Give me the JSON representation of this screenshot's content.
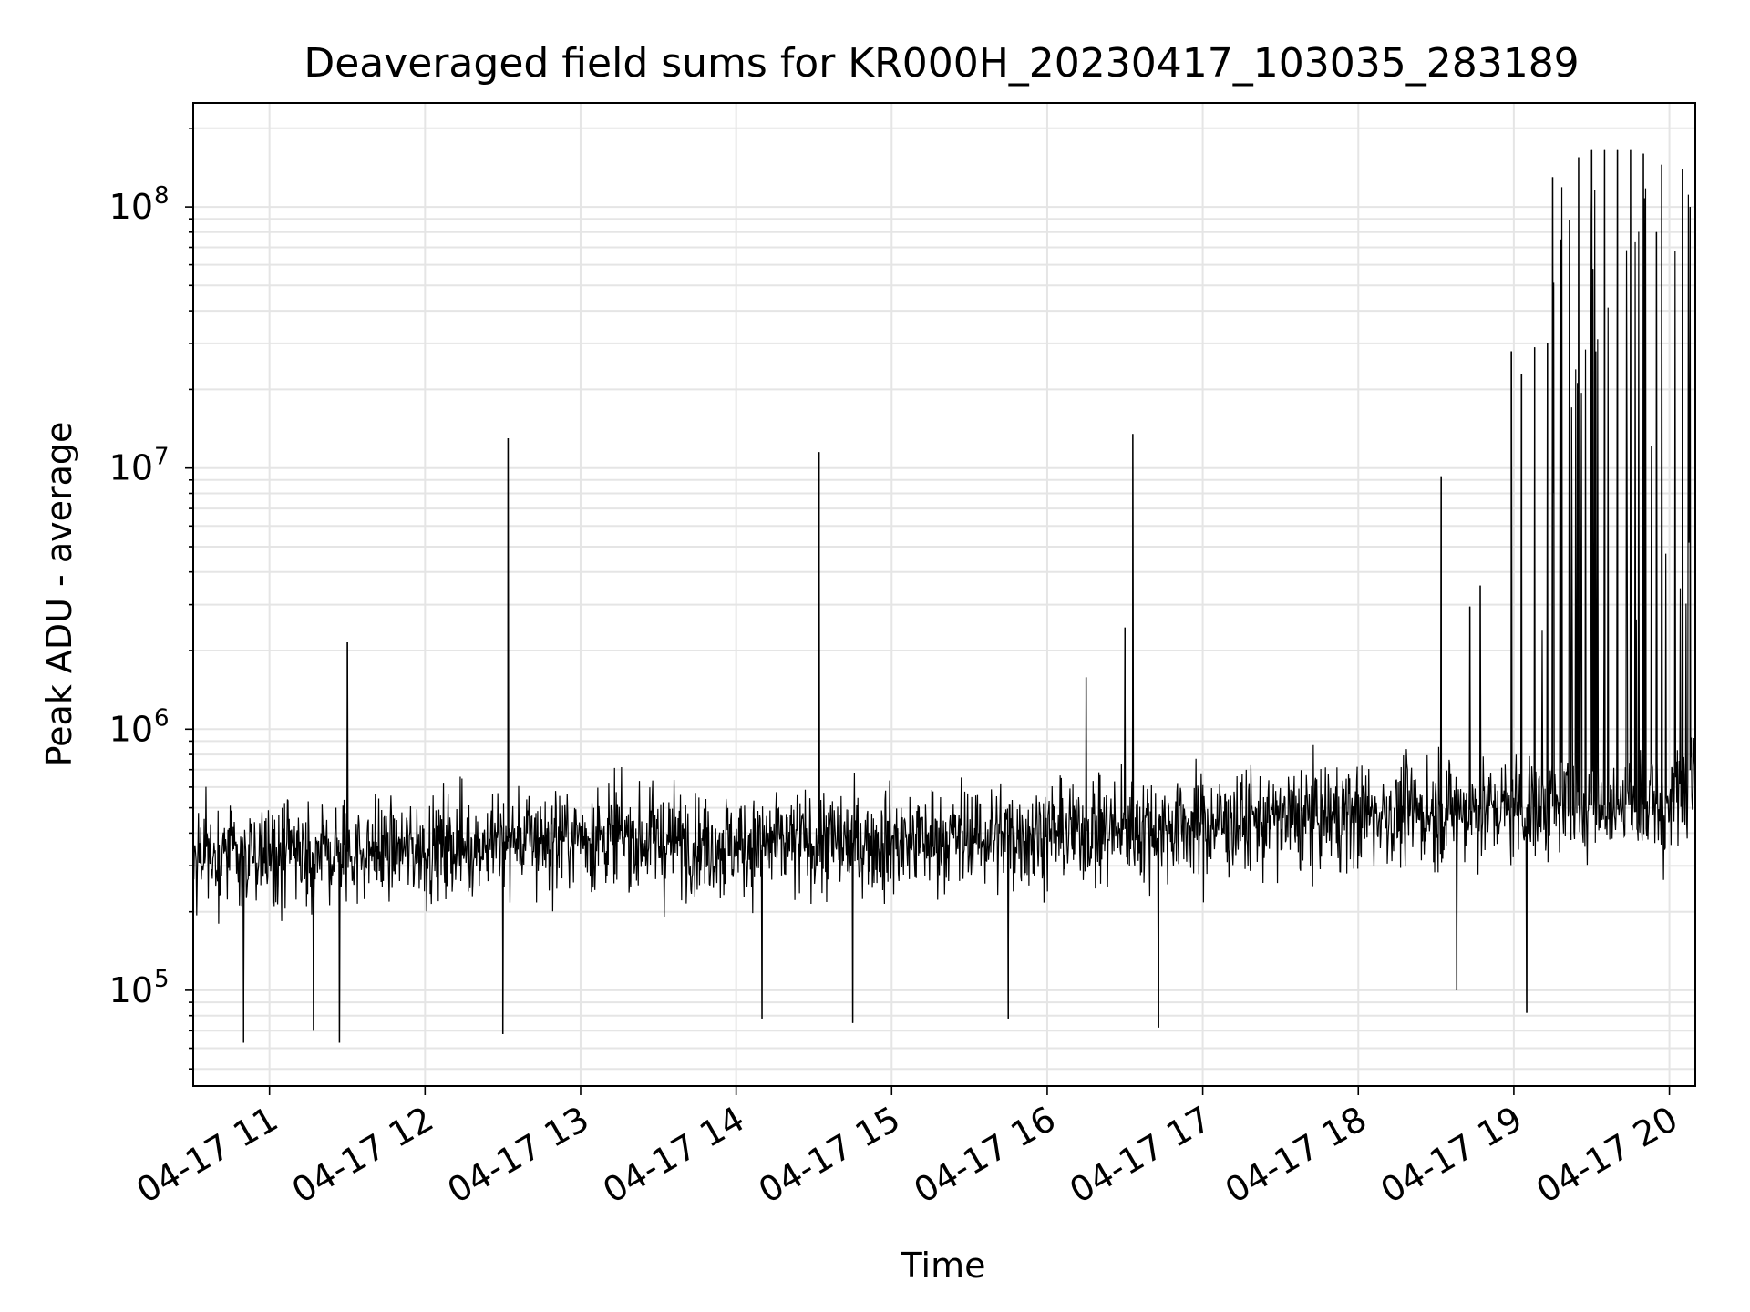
{
  "chart_data": {
    "type": "line",
    "title": "Deaveraged field sums for KR000H_20230417_103035_283189",
    "xlabel": "Time",
    "ylabel": "Peak ADU - average",
    "yscale": "log",
    "ylim": [
      43000,
      250000000
    ],
    "xlim": [
      "2023-04-17 10:30:35",
      "2023-04-17 20:10:00"
    ],
    "x_tick_labels": [
      "04-17 11",
      "04-17 12",
      "04-17 13",
      "04-17 14",
      "04-17 15",
      "04-17 16",
      "04-17 17",
      "04-17 18",
      "04-17 19",
      "04-17 20"
    ],
    "x_tick_values": [
      "2023-04-17 11:00",
      "2023-04-17 12:00",
      "2023-04-17 13:00",
      "2023-04-17 14:00",
      "2023-04-17 15:00",
      "2023-04-17 16:00",
      "2023-04-17 17:00",
      "2023-04-17 18:00",
      "2023-04-17 19:00",
      "2023-04-17 20:00"
    ],
    "y_ticks": [
      {
        "value": 100000,
        "base": "10",
        "exp": "5"
      },
      {
        "value": 1000000,
        "base": "10",
        "exp": "6"
      },
      {
        "value": 10000000,
        "base": "10",
        "exp": "7"
      },
      {
        "value": 100000000,
        "base": "10",
        "exp": "8"
      }
    ],
    "grid": true,
    "line_color": "#000000",
    "grid_color": "#e5e5e5",
    "baseline": [
      {
        "x": "2023-04-17 10:30",
        "y": 320000
      },
      {
        "x": "2023-04-17 11:00",
        "y": 330000
      },
      {
        "x": "2023-04-17 12:00",
        "y": 350000
      },
      {
        "x": "2023-04-17 13:00",
        "y": 390000
      },
      {
        "x": "2023-04-17 14:00",
        "y": 360000
      },
      {
        "x": "2023-04-17 15:00",
        "y": 370000
      },
      {
        "x": "2023-04-17 16:00",
        "y": 400000
      },
      {
        "x": "2023-04-17 17:00",
        "y": 430000
      },
      {
        "x": "2023-04-17 18:00",
        "y": 470000
      },
      {
        "x": "2023-04-17 19:00",
        "y": 500000
      },
      {
        "x": "2023-04-17 20:00",
        "y": 520000
      },
      {
        "x": "2023-04-17 20:10",
        "y": 750000
      }
    ],
    "spikes": [
      {
        "x": "2023-04-17 11:30",
        "y": 2150000
      },
      {
        "x": "2023-04-17 12:32",
        "y": 13000000
      },
      {
        "x": "2023-04-17 14:32",
        "y": 11500000
      },
      {
        "x": "2023-04-17 16:15",
        "y": 1580000
      },
      {
        "x": "2023-04-17 16:30",
        "y": 2450000
      },
      {
        "x": "2023-04-17 16:33",
        "y": 13500000
      },
      {
        "x": "2023-04-17 18:32",
        "y": 9300000
      },
      {
        "x": "2023-04-17 18:43",
        "y": 2950000
      },
      {
        "x": "2023-04-17 18:47",
        "y": 3550000
      },
      {
        "x": "2023-04-17 18:59",
        "y": 28000000
      },
      {
        "x": "2023-04-17 19:03",
        "y": 23000000
      },
      {
        "x": "2023-04-17 19:08",
        "y": 29000000
      },
      {
        "x": "2023-04-17 19:13",
        "y": 30000000
      },
      {
        "x": "2023-04-17 19:15",
        "y": 130000000
      },
      {
        "x": "2023-04-17 19:18",
        "y": 75000000
      },
      {
        "x": "2023-04-17 19:25",
        "y": 155000000
      },
      {
        "x": "2023-04-17 19:30",
        "y": 165000000
      },
      {
        "x": "2023-04-17 19:35",
        "y": 165000000
      },
      {
        "x": "2023-04-17 19:40",
        "y": 165000000
      },
      {
        "x": "2023-04-17 19:45",
        "y": 165000000
      },
      {
        "x": "2023-04-17 19:50",
        "y": 160000000
      },
      {
        "x": "2023-04-17 19:55",
        "y": 80000000
      },
      {
        "x": "2023-04-17 19:57",
        "y": 145000000
      },
      {
        "x": "2023-04-17 20:05",
        "y": 140000000
      },
      {
        "x": "2023-04-17 20:08",
        "y": 100000000
      }
    ],
    "dips": [
      {
        "x": "2023-04-17 10:50",
        "y": 63000
      },
      {
        "x": "2023-04-17 11:17",
        "y": 70000
      },
      {
        "x": "2023-04-17 11:27",
        "y": 63000
      },
      {
        "x": "2023-04-17 12:30",
        "y": 68000
      },
      {
        "x": "2023-04-17 14:10",
        "y": 78000
      },
      {
        "x": "2023-04-17 14:45",
        "y": 75000
      },
      {
        "x": "2023-04-17 15:45",
        "y": 78000
      },
      {
        "x": "2023-04-17 16:43",
        "y": 72000
      },
      {
        "x": "2023-04-17 18:38",
        "y": 100000
      },
      {
        "x": "2023-04-17 19:05",
        "y": 82000
      }
    ]
  }
}
